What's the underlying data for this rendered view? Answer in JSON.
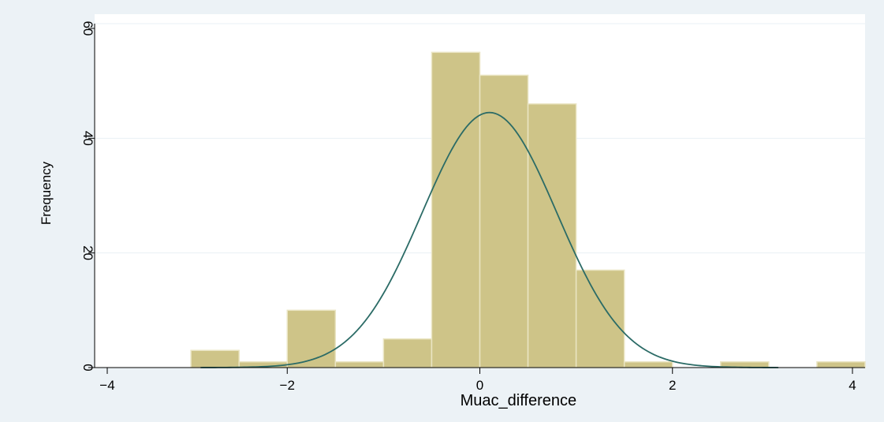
{
  "chart_data": {
    "type": "bar",
    "subtype": "histogram",
    "title": "",
    "xlabel": "Muac_difference",
    "ylabel": "Frequency",
    "xlim": [
      -4,
      4
    ],
    "ylim": [
      0,
      60
    ],
    "xticks": [
      -4,
      -2,
      0,
      2,
      4
    ],
    "yticks": [
      0,
      20,
      40,
      60
    ],
    "xtick_labels": [
      "−4",
      "−2",
      "0",
      "2",
      "4"
    ],
    "ytick_labels": [
      "0",
      "20",
      "40",
      "60"
    ],
    "grid": "horizontal",
    "bin_width": 0.5,
    "bins": [
      {
        "x0": -3.0,
        "x1": -2.5,
        "value": 3
      },
      {
        "x0": -2.5,
        "x1": -2.0,
        "value": 1
      },
      {
        "x0": -2.0,
        "x1": -1.5,
        "value": 10
      },
      {
        "x0": -1.5,
        "x1": -1.0,
        "value": 1
      },
      {
        "x0": -1.0,
        "x1": -0.5,
        "value": 5
      },
      {
        "x0": -0.5,
        "x1": 0.0,
        "value": 55
      },
      {
        "x0": 0.0,
        "x1": 0.5,
        "value": 51
      },
      {
        "x0": 0.5,
        "x1": 1.0,
        "value": 46
      },
      {
        "x0": 1.0,
        "x1": 1.5,
        "value": 17
      },
      {
        "x0": 1.5,
        "x1": 2.0,
        "value": 1
      },
      {
        "x0": 2.5,
        "x1": 3.0,
        "value": 1
      },
      {
        "x0": 3.5,
        "x1": 4.0,
        "value": 1
      }
    ],
    "normal_curve": {
      "mean": 0.1,
      "sd": 0.7,
      "peak": 44.5,
      "x_range": [
        -2.9,
        3.1
      ]
    },
    "colors": {
      "bar_fill": "#cec488",
      "bar_stroke": "#eae5c3",
      "curve": "#2b6b66",
      "plot_bg": "#ffffff",
      "outer_bg": "#ecf2f6",
      "grid": "#eaf0f4"
    }
  }
}
